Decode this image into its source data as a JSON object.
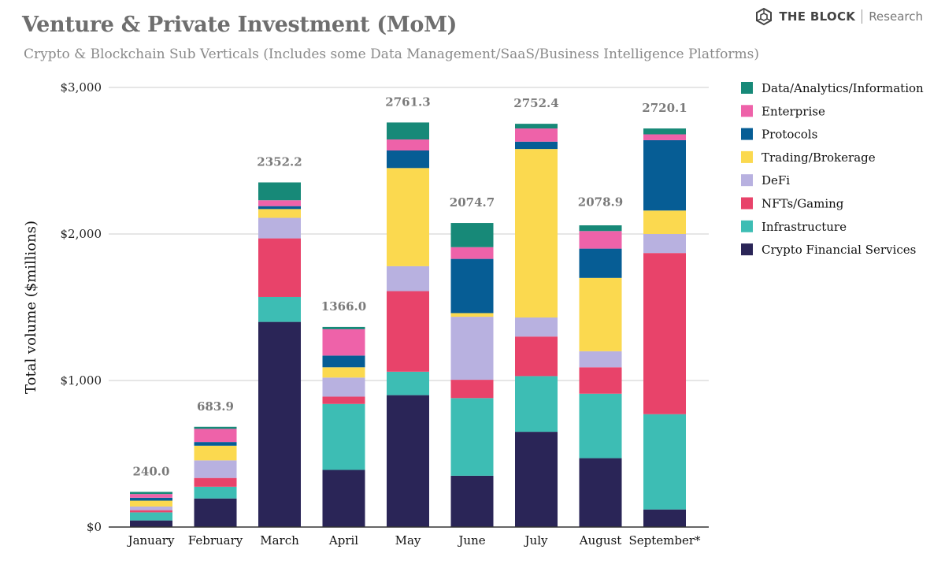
{
  "brand": {
    "name": "THE BLOCK",
    "sub": "Research",
    "logo_icon": "hexagon-cube-icon"
  },
  "chart_data": {
    "type": "bar",
    "stacked": true,
    "title": "Venture & Private Investment (MoM)",
    "subtitle": "Crypto & Blockchain Sub Verticals (Includes some Data Management/SaaS/Business Intelligence Platforms)",
    "ylabel": "Total volume ($millions)",
    "xlabel": "",
    "ylim": [
      0,
      3000
    ],
    "yticks": [
      0,
      1000,
      2000,
      3000
    ],
    "ytick_labels": [
      "$0",
      "$1,000",
      "$2,000",
      "$3,000"
    ],
    "grid": true,
    "legend_position": "right",
    "categories": [
      "January",
      "February",
      "March",
      "April",
      "May",
      "June",
      "July",
      "August",
      "September*"
    ],
    "totals": [
      "240.0",
      "683.9",
      "2352.2",
      "1366.0",
      "2761.3",
      "2074.7",
      "2752.4",
      "2078.9",
      "2720.1"
    ],
    "series": [
      {
        "name": "Crypto Financial Services",
        "color": "#2a2557",
        "values": [
          45,
          195,
          1400,
          390,
          900,
          350,
          650,
          470,
          120
        ]
      },
      {
        "name": "Infrastructure",
        "color": "#3dbdb4",
        "values": [
          55,
          80,
          170,
          450,
          160,
          530,
          380,
          440,
          650
        ]
      },
      {
        "name": "NFTs/Gaming",
        "color": "#e8436a",
        "values": [
          15,
          60,
          400,
          50,
          550,
          125,
          270,
          180,
          1100
        ]
      },
      {
        "name": "DeFi",
        "color": "#b8b1e0",
        "values": [
          25,
          120,
          140,
          130,
          170,
          430,
          130,
          110,
          130
        ]
      },
      {
        "name": "Trading/Brokerage",
        "color": "#fbd94f",
        "values": [
          40,
          100,
          60,
          70,
          670,
          25,
          1150,
          500,
          160
        ]
      },
      {
        "name": "Protocols",
        "color": "#065d95",
        "values": [
          20,
          25,
          20,
          80,
          120,
          370,
          50,
          200,
          480
        ]
      },
      {
        "name": "Enterprise",
        "color": "#ee62a9",
        "values": [
          25,
          90,
          40,
          180,
          75,
          80,
          90,
          120,
          40
        ]
      },
      {
        "name": "Data/Analytics/Information",
        "color": "#178978",
        "values": [
          15,
          14,
          122,
          16,
          116,
          165,
          32,
          39,
          40
        ]
      }
    ]
  }
}
